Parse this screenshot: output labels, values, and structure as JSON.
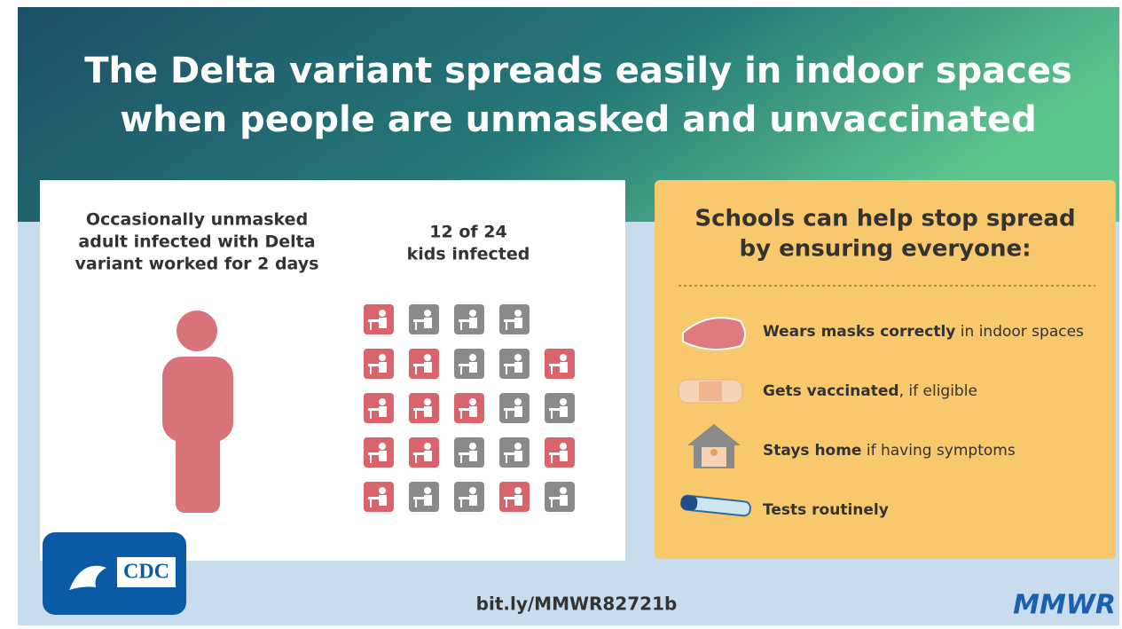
{
  "title_lines": [
    "The Delta variant spreads easily in indoor spaces",
    "when people are unmasked and unvaccinated"
  ],
  "adult_text": [
    "Occasionally unmasked",
    "adult infected with Delta",
    "variant worked for 2 days"
  ],
  "kids_text": [
    "12 of 24",
    "kids infected"
  ],
  "kids_grid": [
    [
      true,
      false,
      false,
      false
    ],
    [
      true,
      true,
      false,
      false,
      true
    ],
    [
      true,
      true,
      true,
      false,
      false
    ],
    [
      true,
      true,
      false,
      false,
      true
    ],
    [
      true,
      false,
      false,
      true,
      false
    ]
  ],
  "infected_color": "#d9646b",
  "uninfected_color": "#8a8a8a",
  "schools_heading": [
    "Schools can help stop spread",
    "by ensuring everyone:"
  ],
  "items": [
    {
      "bold": "Wears masks correctly",
      "rest": " in indoor spaces"
    },
    {
      "bold": "Gets vaccinated",
      "rest": ", if eligible"
    },
    {
      "bold": "Stays home",
      "rest": " if having symptoms"
    },
    {
      "bold": "Tests routinely",
      "rest": ""
    }
  ],
  "logo": "CDC",
  "link": "bit.ly/MMWR82721b",
  "brand": "MMWR"
}
